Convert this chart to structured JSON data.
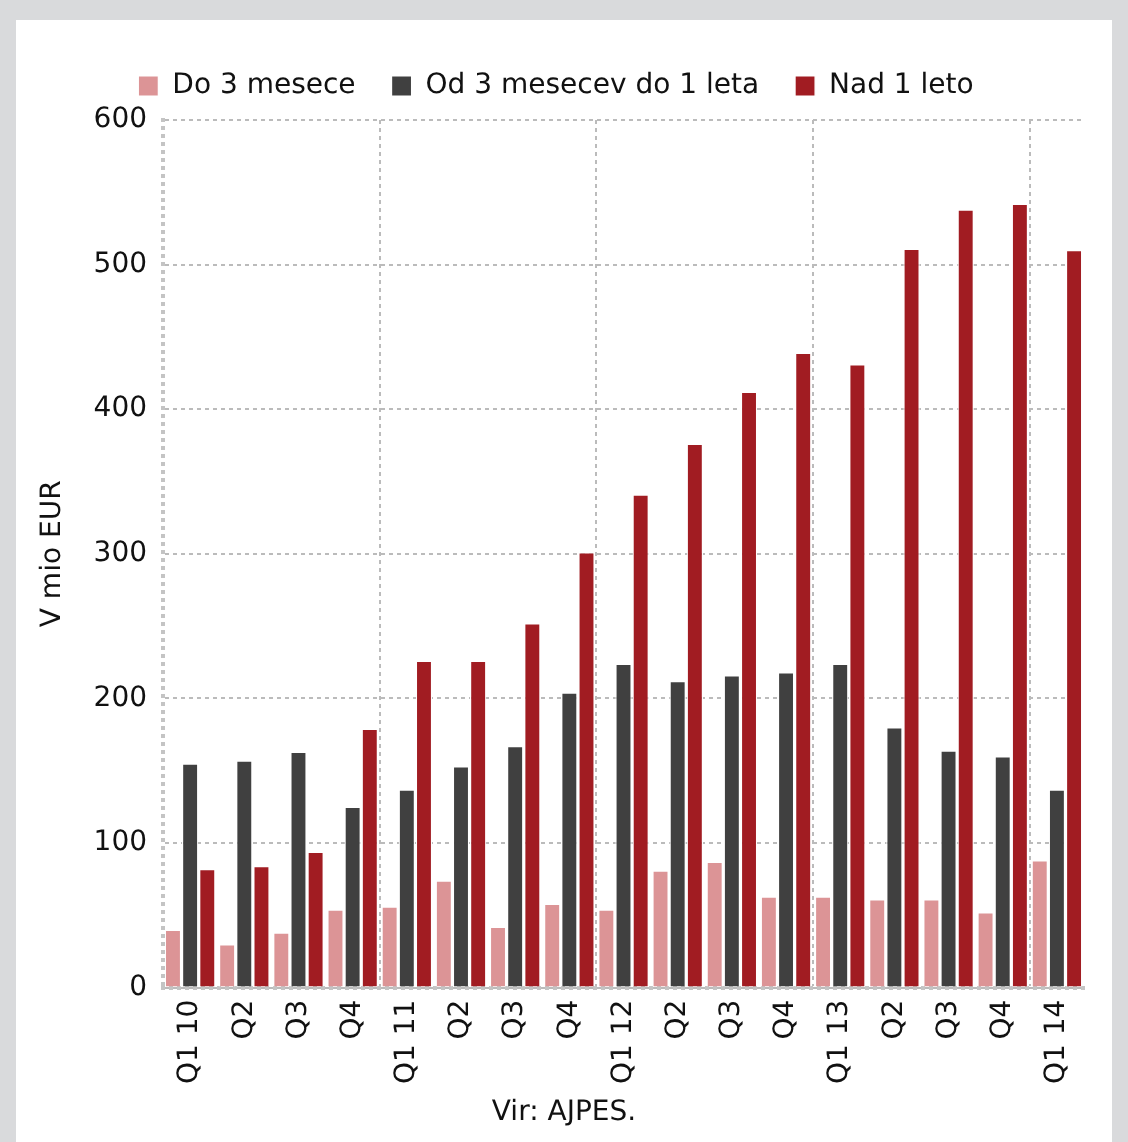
{
  "chart_data": {
    "type": "bar",
    "ylabel": "V mio EUR",
    "annotations": [
      "Vir: AJPES."
    ],
    "categories": [
      "Q1 10",
      "Q2",
      "Q3",
      "Q4",
      "Q1 11",
      "Q2",
      "Q3",
      "Q4",
      "Q1 12",
      "Q2",
      "Q3",
      "Q4",
      "Q1 13",
      "Q2",
      "Q3",
      "Q4",
      "Q1 14"
    ],
    "series": [
      {
        "name": "Do 3 mesece",
        "color": "#dc9496",
        "values": [
          40,
          30,
          38,
          54,
          56,
          74,
          42,
          58,
          54,
          81,
          87,
          63,
          63,
          61,
          61,
          52,
          88
        ]
      },
      {
        "name": "Od 3 mesecev do 1 leta",
        "color": "#404040",
        "values": [
          155,
          157,
          163,
          125,
          137,
          153,
          167,
          204,
          224,
          212,
          216,
          218,
          224,
          180,
          164,
          160,
          137
        ]
      },
      {
        "name": "Nad 1 leto",
        "color": "#a11c22",
        "values": [
          82,
          84,
          94,
          179,
          226,
          226,
          252,
          301,
          341,
          376,
          412,
          439,
          431,
          511,
          538,
          542,
          510
        ]
      }
    ],
    "ylim": [
      0,
      600
    ],
    "yticks": [
      0,
      100,
      200,
      300,
      400,
      500,
      600
    ],
    "grid": true,
    "legend": "top"
  }
}
